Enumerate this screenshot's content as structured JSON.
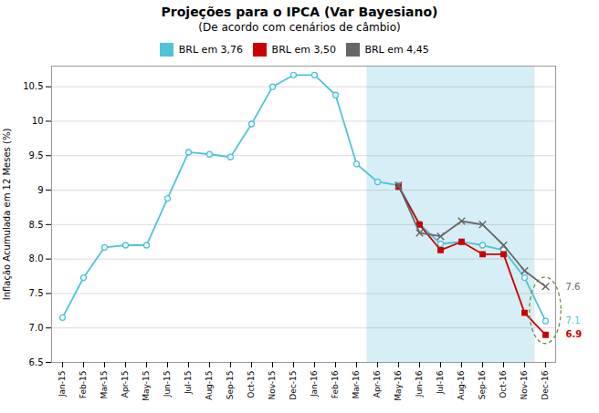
{
  "chart_data": {
    "type": "line",
    "title": "Projeções para o IPCA  (Var Bayesiano)",
    "subtitle": "(De acordo com cenários de câmbio)",
    "ylabel": "Inflação Acumulada em 12 Meses (%)",
    "categories": [
      "Jan-15",
      "Feb-15",
      "Mar-15",
      "Apr-15",
      "May-15",
      "Jun-15",
      "Jul-15",
      "Aug-15",
      "Sep-15",
      "Oct-15",
      "Nov-15",
      "Dec-15",
      "Jan-16",
      "Feb-16",
      "Mar-16",
      "Apr-16",
      "May-16",
      "Jun-16",
      "Jul-16",
      "Aug-16",
      "Sep-16",
      "Oct-16",
      "Nov-16",
      "Dec-16"
    ],
    "series": [
      {
        "name": "BRL em 3,76",
        "color": "#4FC3D9",
        "marker": "circle",
        "values": [
          7.15,
          7.73,
          8.17,
          8.2,
          8.2,
          8.88,
          9.55,
          9.52,
          9.48,
          9.96,
          10.5,
          10.67,
          10.67,
          10.38,
          9.38,
          9.12,
          9.07,
          8.51,
          8.22,
          8.25,
          8.2,
          8.13,
          7.73,
          7.1
        ],
        "value_labels": [
          null,
          null,
          null,
          null,
          null,
          null,
          null,
          null,
          null,
          null,
          null,
          null,
          null,
          null,
          null,
          null,
          null,
          null,
          null,
          null,
          null,
          null,
          null,
          "7.1"
        ]
      },
      {
        "name": "BRL em 3,50",
        "color": "#CC0000",
        "marker": "square",
        "values": [
          null,
          null,
          null,
          null,
          null,
          null,
          null,
          null,
          null,
          null,
          null,
          null,
          null,
          null,
          null,
          null,
          9.05,
          8.5,
          8.13,
          8.25,
          8.07,
          8.07,
          7.22,
          6.9
        ],
        "value_labels": [
          null,
          null,
          null,
          null,
          null,
          null,
          null,
          null,
          null,
          null,
          null,
          null,
          null,
          null,
          null,
          null,
          null,
          null,
          null,
          null,
          null,
          null,
          null,
          "6.9"
        ]
      },
      {
        "name": "BRL em 4,45",
        "color": "#666666",
        "marker": "x",
        "values": [
          null,
          null,
          null,
          null,
          null,
          null,
          null,
          null,
          null,
          null,
          null,
          null,
          null,
          null,
          null,
          null,
          9.07,
          8.38,
          8.33,
          8.55,
          8.5,
          8.2,
          7.83,
          7.6
        ],
        "value_labels": [
          null,
          null,
          null,
          null,
          null,
          null,
          null,
          null,
          null,
          null,
          null,
          null,
          null,
          null,
          null,
          null,
          null,
          null,
          null,
          null,
          null,
          null,
          null,
          "7.6"
        ]
      }
    ],
    "shaded": {
      "start": "Apr-16",
      "end": "Nov-16",
      "color": "#D6EEF5"
    },
    "ylim": [
      6.5,
      10.8
    ],
    "yticks": [
      6.5,
      {
        "value": 7,
        "label": "7.0"
      },
      7.5,
      {
        "value": 8,
        "label": "8.0"
      },
      8.5,
      9,
      9.5,
      10,
      10.5
    ],
    "grid": true,
    "legend": "top"
  }
}
